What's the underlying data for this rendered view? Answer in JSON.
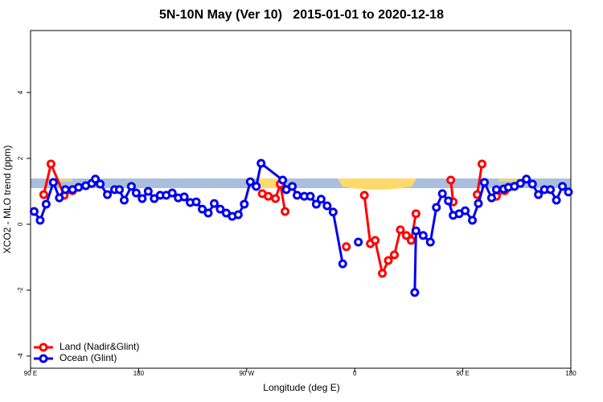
{
  "chart_data": {
    "type": "line",
    "title": "5N-10N May (Ver 10)   2015-01-01 to 2020-12-18",
    "xlabel": "Longitude (deg E)",
    "ylabel": "XCO2 - MLO trend (ppm)",
    "xlim": [
      90,
      540
    ],
    "xticks": [
      {
        "value": 90,
        "label": "90 E"
      },
      {
        "value": 180,
        "label": "180"
      },
      {
        "value": 270,
        "label": "90 W"
      },
      {
        "value": 360,
        "label": "0"
      },
      {
        "value": 450,
        "label": "90 E"
      },
      {
        "value": 540,
        "label": "180"
      }
    ],
    "ylim": [
      -4.37,
      5.88
    ],
    "yticks": [
      -4,
      -2,
      0,
      2,
      4
    ],
    "legend": "lower left",
    "series": [
      {
        "name": "Land (Nadir&Glint)",
        "color": "#ff0000",
        "x": [
          101,
          107,
          118,
          125,
          null,
          283,
          288,
          294,
          298,
          302,
          null,
          353,
          null,
          368,
          373,
          377,
          383,
          388,
          393,
          398,
          403,
          407,
          411,
          null,
          440,
          442,
          null,
          462,
          466,
          null,
          478,
          485
        ],
        "values": [
          0.9,
          1.83,
          0.88,
          1.02,
          null,
          0.93,
          0.85,
          0.78,
          1.22,
          0.39,
          null,
          -0.68,
          null,
          0.88,
          -0.59,
          -0.49,
          -1.49,
          -1.1,
          -0.93,
          -0.17,
          -0.34,
          -0.49,
          0.32,
          null,
          1.34,
          0.68,
          null,
          0.9,
          1.83,
          null,
          0.85,
          1.02
        ]
      },
      {
        "name": "Ocean (Glint)",
        "color": "#0000ee",
        "x": [
          93,
          98,
          103,
          109,
          114,
          119,
          125,
          130,
          136,
          141,
          144,
          148,
          154,
          160,
          164,
          168,
          174,
          178,
          183,
          188,
          193,
          198,
          203,
          208,
          213,
          218,
          223,
          228,
          233,
          238,
          243,
          248,
          253,
          258,
          263,
          268,
          273,
          278,
          282,
          300,
          303,
          308,
          312,
          318,
          323,
          328,
          332,
          337,
          342,
          350,
          null,
          363,
          null,
          410,
          411,
          417,
          423,
          428,
          433,
          438,
          442,
          447,
          452,
          458,
          463,
          468,
          474,
          478,
          484,
          488,
          493,
          498,
          503,
          508,
          513,
          518,
          523,
          528,
          533,
          538
        ],
        "values": [
          0.39,
          0.12,
          0.61,
          1.27,
          0.8,
          1.05,
          1.05,
          1.12,
          1.17,
          1.24,
          1.37,
          1.22,
          0.9,
          1.05,
          1.05,
          0.73,
          1.15,
          0.95,
          0.78,
          1.0,
          0.78,
          0.88,
          0.88,
          0.95,
          0.8,
          0.83,
          0.66,
          0.68,
          0.46,
          0.34,
          0.63,
          0.46,
          0.34,
          0.24,
          0.29,
          0.61,
          1.29,
          1.15,
          1.85,
          1.34,
          1.05,
          1.15,
          0.88,
          0.85,
          0.85,
          0.61,
          0.76,
          0.56,
          0.37,
          -1.2,
          null,
          -0.54,
          null,
          -2.07,
          -0.2,
          -0.34,
          -0.54,
          0.51,
          0.93,
          0.71,
          0.27,
          0.32,
          0.41,
          0.12,
          0.63,
          1.27,
          0.8,
          1.05,
          1.07,
          1.12,
          1.15,
          1.24,
          1.37,
          1.22,
          0.9,
          1.05,
          1.05,
          0.73,
          1.15,
          0.98
        ]
      }
    ]
  }
}
